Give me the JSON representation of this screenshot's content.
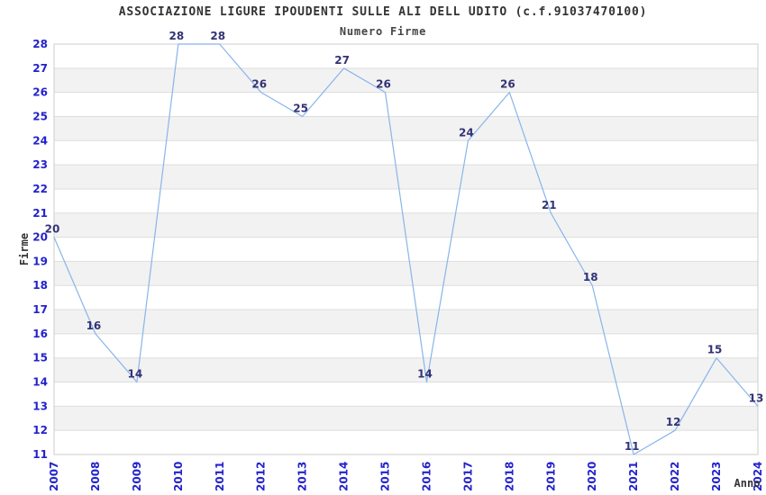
{
  "chart_data": {
    "type": "line",
    "title": "ASSOCIAZIONE LIGURE IPOUDENTI SULLE ALI DELL UDITO (c.f.91037470100)",
    "subtitle": "Numero Firme",
    "xlabel": "Anno",
    "ylabel": "Firme",
    "categories": [
      "2007",
      "2008",
      "2009",
      "2010",
      "2011",
      "2012",
      "2013",
      "2014",
      "2015",
      "2016",
      "2017",
      "2018",
      "2019",
      "2020",
      "2021",
      "2022",
      "2023",
      "2024"
    ],
    "series": [
      {
        "name": "Numero Firme",
        "values": [
          20,
          16,
          14,
          28,
          28,
          26,
          25,
          27,
          26,
          14,
          24,
          26,
          21,
          18,
          11,
          12,
          15,
          13
        ]
      }
    ],
    "ylim": [
      11,
      28
    ],
    "ytick_step": 1,
    "xtick_rotation": -90,
    "grid": "horizontal-only",
    "legend": "none",
    "point_labels": true,
    "colors": {
      "line": "#88b5ea",
      "tick_label": "#2323cc",
      "point_label": "#333377",
      "grid_line": "#dddddd",
      "plot_border": "#cccccc",
      "band_alt": "#f2f2f2",
      "band_main": "#ffffff",
      "title_text": "#333333",
      "background": "#ffffff"
    }
  }
}
